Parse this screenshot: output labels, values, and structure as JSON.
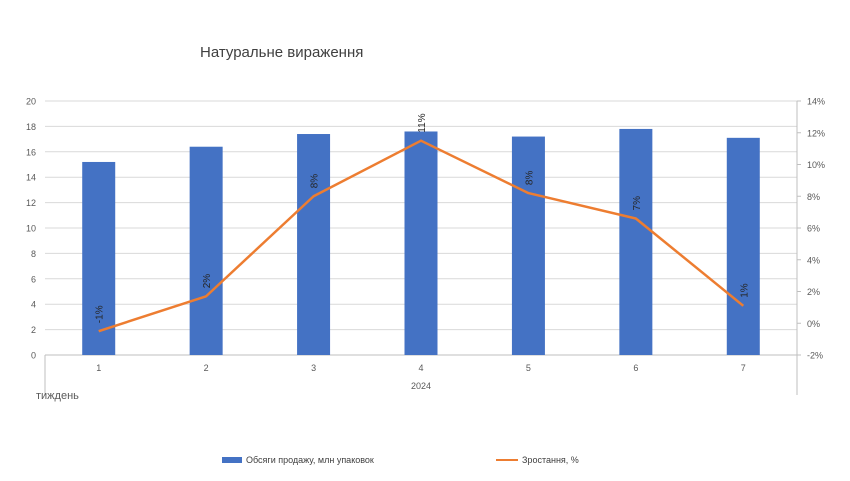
{
  "chart_data": {
    "type": "bar",
    "title": "Натуральне вираження",
    "xlabel": "тиждень",
    "group_label": "2024",
    "categories": [
      "1",
      "2",
      "3",
      "4",
      "5",
      "6",
      "7"
    ],
    "series": [
      {
        "name": "Обсяги продажу, млн упаковок",
        "type": "bar",
        "axis": "left",
        "color": "#4472C4",
        "values": [
          15.2,
          16.4,
          17.4,
          17.6,
          17.2,
          17.8,
          17.1
        ]
      },
      {
        "name": "Зростання, %",
        "type": "line",
        "axis": "right",
        "color": "#ED7D31",
        "values": [
          -0.5,
          1.7,
          8.0,
          11.5,
          8.2,
          6.6,
          1.1
        ],
        "labels": [
          "-1%",
          "2%",
          "8%",
          "11%",
          "8%",
          "7%",
          "1%"
        ]
      }
    ],
    "y_left": {
      "min": 0,
      "max": 20,
      "step": 2,
      "ticks": [
        "0",
        "2",
        "4",
        "6",
        "8",
        "10",
        "12",
        "14",
        "16",
        "18",
        "20"
      ]
    },
    "y_right": {
      "min": -2,
      "max": 14,
      "step": 2,
      "ticks": [
        "-2%",
        "0%",
        "2%",
        "4%",
        "6%",
        "8%",
        "10%",
        "12%",
        "14%"
      ]
    },
    "grid": true,
    "legend_position": "bottom"
  }
}
